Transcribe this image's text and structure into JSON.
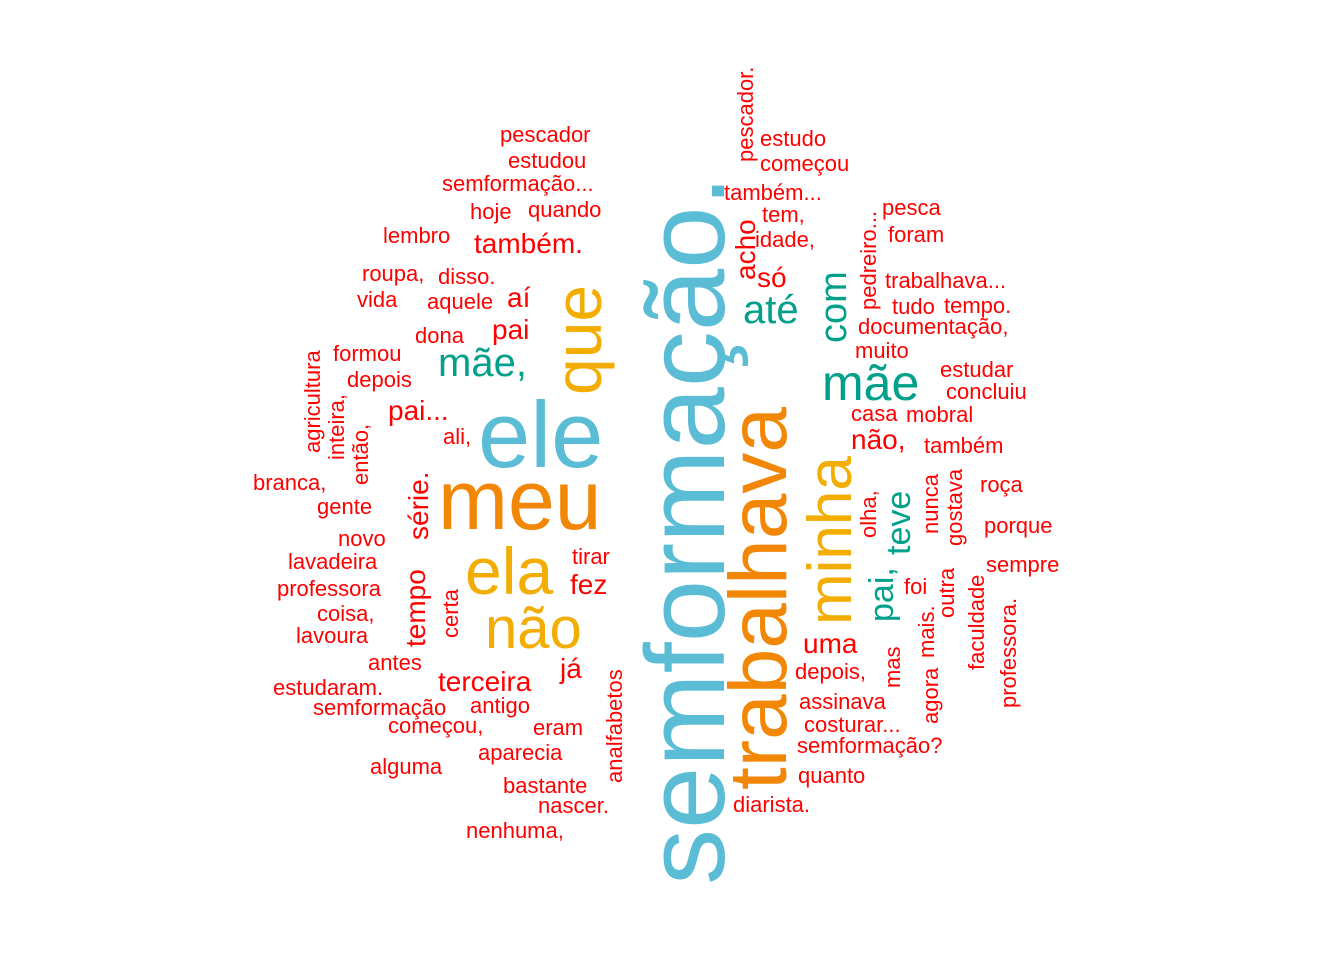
{
  "colors": {
    "blue": "#5BBCD6",
    "orange": "#F28705",
    "yellow": "#F2AD00",
    "teal": "#00A08A",
    "red": "#FF0000"
  },
  "words": {
    "semformacao_dot": "semformação.",
    "trabalhava": "trabalhava",
    "ele": "ele",
    "meu": "meu",
    "ela": "ela",
    "que": "que",
    "nao_big": "não",
    "minha": "minha",
    "mae_teal": "mãe",
    "mae_comma": "mãe,",
    "ate": "até",
    "com": "com",
    "pai_comma": "pai,",
    "teve": "teve",
    "pescador": "pescador",
    "estudou": "estudou",
    "semformacao_ellipsis": "semformação...",
    "hoje": "hoje",
    "quando": "quando",
    "lembro": "lembro",
    "tambem_dot": "também.",
    "roupa": "roupa,",
    "disso": "disso.",
    "vida": "vida",
    "aquele": "aquele",
    "ai": "aí",
    "pai": "pai",
    "dona": "dona",
    "formou": "formou",
    "depois": "depois",
    "pai_ellipsis": "pai...",
    "ali": "ali,",
    "agricultura": "agricultura",
    "inteira": "inteira,",
    "entao": "então,",
    "branca": "branca,",
    "gente": "gente",
    "serie": "série.",
    "novo": "novo",
    "lavadeira": "lavadeira",
    "professora": "professora",
    "coisa": "coisa,",
    "lavoura": "lavoura",
    "tempo": "tempo",
    "certa": "certa",
    "tirar": "tirar",
    "fez": "fez",
    "antes": "antes",
    "ja": "já",
    "terceira": "terceira",
    "estudaram": "estudaram.",
    "semformacao_plain": "semformação",
    "antigo": "antigo",
    "comecou_comma": "começou,",
    "eram": "eram",
    "analfabetos": "analfabetos",
    "aparecia": "aparecia",
    "alguma": "alguma",
    "bastante": "bastante",
    "nascer": "nascer.",
    "nenhuma": "nenhuma,",
    "pescador_dot": "pescador.",
    "estudo": "estudo",
    "comecou": "começou",
    "tambem_ellipsis": "também...",
    "acho": "acho",
    "tem": "tem,",
    "idade": "idade,",
    "so": "só",
    "pedreiro": "pedreiro...",
    "pesca": "pesca",
    "foram": "foram",
    "trabalhava_ellipsis": "trabalhava...",
    "tudo": "tudo",
    "tempo_dot": "tempo.",
    "documentacao": "documentação,",
    "muito": "muito",
    "estudar": "estudar",
    "concluiu": "concluiu",
    "casa": "casa",
    "mobral": "mobral",
    "nao_comma": "não,",
    "tambem": "também",
    "roca": "roça",
    "olha": "olha,",
    "nunca": "nunca",
    "gostava": "gostava",
    "porque": "porque",
    "sempre": "sempre",
    "foi": "foi",
    "outra": "outra",
    "mais": "mais.",
    "faculdade": "faculdade",
    "professora_dot": "professora.",
    "uma": "uma",
    "mas": "mas",
    "agora": "agora",
    "depois_comma": "depois,",
    "assinava": "assinava",
    "costurar": "costurar...",
    "semformacao_q": "semformação?",
    "quanto": "quanto",
    "diarista": "diarista."
  }
}
